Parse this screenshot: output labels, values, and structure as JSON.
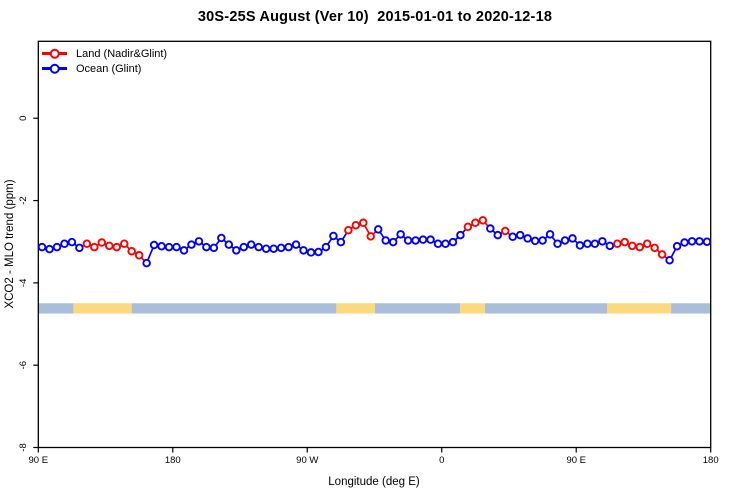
{
  "title": "30S-25S August (Ver 10)  2015-01-01 to 2020-12-18",
  "legend": {
    "entries": [
      {
        "label": "Land (Nadir&Glint)",
        "surface": "L"
      },
      {
        "label": "Ocean (Glint)",
        "surface": "O"
      }
    ]
  },
  "chart_data": {
    "type": "line",
    "title": "30S-25S August (Ver 10)  2015-01-01 to 2020-12-18",
    "xlabel": "Longitude (deg E)",
    "ylabel": "XCO2 - MLO trend (ppm)",
    "x_axis": {
      "span_deg": 450,
      "note": "axis starts at 90E and wraps eastward 450 degrees",
      "ticks": [
        {
          "deg": 0,
          "label": "90 E"
        },
        {
          "deg": 90,
          "label": "180"
        },
        {
          "deg": 180,
          "label": "90 W"
        },
        {
          "deg": 270,
          "label": "0"
        },
        {
          "deg": 360,
          "label": "90 E"
        },
        {
          "deg": 450,
          "label": "180"
        }
      ]
    },
    "y_axis": {
      "ticks": [
        0,
        -2,
        -4,
        -6,
        -8
      ],
      "lim": [
        -8,
        1.87
      ],
      "grid": false
    },
    "series_colors": {
      "L": "#FF0000",
      "O": "#0000FF"
    },
    "marker": {
      "shape": "open-circle",
      "fill": "#FFFFFF"
    },
    "points": [
      [
        2.5,
        -3.13,
        "O"
      ],
      [
        7.5,
        -3.18,
        "O"
      ],
      [
        12.5,
        -3.13,
        "O"
      ],
      [
        17.5,
        -3.05,
        "O"
      ],
      [
        22.5,
        -3.01,
        "O"
      ],
      [
        27.5,
        -3.15,
        "O"
      ],
      [
        32.5,
        -3.05,
        "L"
      ],
      [
        37.5,
        -3.13,
        "L"
      ],
      [
        42.5,
        -3.02,
        "L"
      ],
      [
        47.5,
        -3.1,
        "L"
      ],
      [
        52.5,
        -3.13,
        "L"
      ],
      [
        57.5,
        -3.05,
        "L"
      ],
      [
        62.5,
        -3.23,
        "L"
      ],
      [
        67.5,
        -3.33,
        "L"
      ],
      [
        72.5,
        -3.52,
        "O"
      ],
      [
        77.5,
        -3.08,
        "O"
      ],
      [
        82.5,
        -3.11,
        "O"
      ],
      [
        87.5,
        -3.13,
        "O"
      ],
      [
        92.5,
        -3.13,
        "O"
      ],
      [
        97.5,
        -3.21,
        "O"
      ],
      [
        102.5,
        -3.07,
        "O"
      ],
      [
        107.5,
        -2.99,
        "O"
      ],
      [
        112.5,
        -3.13,
        "O"
      ],
      [
        117.5,
        -3.15,
        "O"
      ],
      [
        122.5,
        -2.91,
        "O"
      ],
      [
        127.5,
        -3.07,
        "O"
      ],
      [
        132.5,
        -3.21,
        "O"
      ],
      [
        137.5,
        -3.13,
        "O"
      ],
      [
        142.5,
        -3.07,
        "O"
      ],
      [
        147.5,
        -3.13,
        "O"
      ],
      [
        152.5,
        -3.17,
        "O"
      ],
      [
        157.5,
        -3.17,
        "O"
      ],
      [
        162.5,
        -3.15,
        "O"
      ],
      [
        167.5,
        -3.13,
        "O"
      ],
      [
        172.5,
        -3.07,
        "O"
      ],
      [
        177.5,
        -3.21,
        "O"
      ],
      [
        182.5,
        -3.26,
        "O"
      ],
      [
        187.5,
        -3.25,
        "O"
      ],
      [
        192.5,
        -3.13,
        "O"
      ],
      [
        197.5,
        -2.86,
        "O"
      ],
      [
        202.5,
        -3.01,
        "O"
      ],
      [
        207.5,
        -2.72,
        "L"
      ],
      [
        212.5,
        -2.6,
        "L"
      ],
      [
        217.5,
        -2.54,
        "L"
      ],
      [
        222.5,
        -2.87,
        "L"
      ],
      [
        227.5,
        -2.7,
        "O"
      ],
      [
        232.5,
        -2.97,
        "O"
      ],
      [
        237.5,
        -3.01,
        "O"
      ],
      [
        242.5,
        -2.82,
        "O"
      ],
      [
        247.5,
        -2.97,
        "O"
      ],
      [
        252.5,
        -2.97,
        "O"
      ],
      [
        257.5,
        -2.95,
        "O"
      ],
      [
        262.5,
        -2.95,
        "O"
      ],
      [
        267.5,
        -3.05,
        "O"
      ],
      [
        272.5,
        -3.05,
        "O"
      ],
      [
        277.5,
        -3.01,
        "O"
      ],
      [
        282.5,
        -2.84,
        "O"
      ],
      [
        287.5,
        -2.64,
        "L"
      ],
      [
        292.5,
        -2.54,
        "L"
      ],
      [
        297.5,
        -2.48,
        "L"
      ],
      [
        302.5,
        -2.68,
        "O"
      ],
      [
        307.5,
        -2.84,
        "O"
      ],
      [
        312.5,
        -2.74,
        "L"
      ],
      [
        317.5,
        -2.88,
        "O"
      ],
      [
        322.5,
        -2.84,
        "O"
      ],
      [
        327.5,
        -2.92,
        "O"
      ],
      [
        332.5,
        -2.98,
        "O"
      ],
      [
        337.5,
        -2.97,
        "O"
      ],
      [
        342.5,
        -2.82,
        "O"
      ],
      [
        347.5,
        -3.05,
        "O"
      ],
      [
        352.5,
        -2.97,
        "O"
      ],
      [
        357.5,
        -2.92,
        "O"
      ],
      [
        362.5,
        -3.09,
        "O"
      ],
      [
        367.5,
        -3.05,
        "O"
      ],
      [
        372.5,
        -3.05,
        "O"
      ],
      [
        377.5,
        -2.99,
        "O"
      ],
      [
        382.5,
        -3.1,
        "O"
      ],
      [
        387.5,
        -3.05,
        "L"
      ],
      [
        392.5,
        -3.01,
        "L"
      ],
      [
        397.5,
        -3.1,
        "L"
      ],
      [
        402.5,
        -3.13,
        "L"
      ],
      [
        407.5,
        -3.05,
        "L"
      ],
      [
        412.5,
        -3.15,
        "L"
      ],
      [
        417.5,
        -3.31,
        "L"
      ],
      [
        422.5,
        -3.45,
        "O"
      ],
      [
        427.5,
        -3.11,
        "O"
      ],
      [
        432.5,
        -3.02,
        "O"
      ],
      [
        437.5,
        -2.99,
        "O"
      ],
      [
        442.5,
        -2.99,
        "O"
      ],
      [
        447.5,
        -3.0,
        "O"
      ]
    ],
    "surface_band": {
      "value_center": -4.62,
      "value_half_height": 0.125,
      "colors": {
        "O": "#A8BED9",
        "L": "#FCD97E"
      },
      "segments": [
        {
          "from": 0,
          "to": 23.5,
          "type": "O"
        },
        {
          "from": 23.5,
          "to": 62.5,
          "type": "L"
        },
        {
          "from": 62.5,
          "to": 199.5,
          "type": "O"
        },
        {
          "from": 199.5,
          "to": 225.3,
          "type": "L"
        },
        {
          "from": 225.3,
          "to": 282.3,
          "type": "O"
        },
        {
          "from": 282.3,
          "to": 299.0,
          "type": "L"
        },
        {
          "from": 299.0,
          "to": 380.8,
          "type": "O"
        },
        {
          "from": 380.8,
          "to": 423.5,
          "type": "L"
        },
        {
          "from": 423.5,
          "to": 450,
          "type": "O"
        }
      ]
    }
  }
}
